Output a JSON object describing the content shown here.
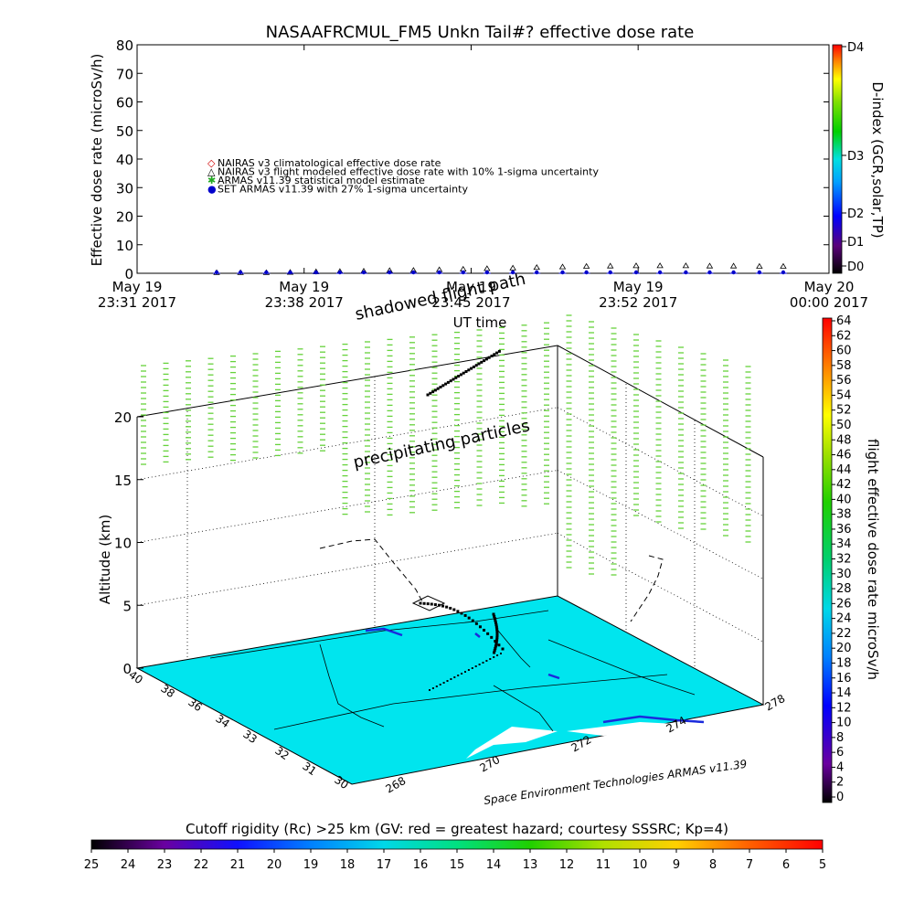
{
  "top_chart": {
    "title": "NASAAFRCMUL_FM5 Unkn Tail#? effective dose rate",
    "ylabel": "Effective dose rate (microSv/h)",
    "xlabel": "UT time",
    "y_ticks": [
      "0",
      "10",
      "20",
      "30",
      "40",
      "50",
      "60",
      "70",
      "80"
    ],
    "x_ticks": [
      {
        "line1": "May 19",
        "line2": "23:31 2017"
      },
      {
        "line1": "May 19",
        "line2": "23:38 2017"
      },
      {
        "line1": "May 19",
        "line2": "23:45 2017"
      },
      {
        "line1": "May 19",
        "line2": "23:52 2017"
      },
      {
        "line1": "May 20",
        "line2": "00:00 2017"
      }
    ],
    "legend": [
      {
        "marker": "◇",
        "color": "#d00000",
        "label": "NAIRAS v3 climatological effective dose rate"
      },
      {
        "marker": "△",
        "color": "#000000",
        "label": "NAIRAS v3 flight modeled effective dose rate with 10% 1-sigma uncertainty"
      },
      {
        "marker": "✱",
        "color": "#22aa22",
        "label": "ARMAS v11.39 statistical model estimate"
      },
      {
        "marker": "●",
        "color": "#0000cc",
        "label": "SET ARMAS v11.39 with 27% 1-sigma uncertainty"
      }
    ],
    "d_index": {
      "title": "D-index (GCR,solar,TP)",
      "labels": [
        "D4",
        "D3",
        "D2",
        "D1",
        "D0"
      ]
    }
  },
  "bottom_chart": {
    "z_label": "Altitude (km)",
    "z_ticks": [
      "0",
      "5",
      "10",
      "15",
      "20"
    ],
    "lat_ticks": [
      "40",
      "38",
      "36",
      "34",
      "33",
      "32",
      "31",
      "30"
    ],
    "lon_ticks": [
      "268",
      "270",
      "272",
      "274",
      "278"
    ],
    "annotations": {
      "shadowed": "shadowed flight path",
      "precip": "precipitating particles",
      "credit": "Space Environment Technologies ARMAS v11.39"
    },
    "right_colorbar": {
      "title": "flight effective dose rate microSv/h",
      "ticks": [
        "64",
        "62",
        "60",
        "58",
        "56",
        "54",
        "52",
        "50",
        "48",
        "46",
        "44",
        "42",
        "40",
        "38",
        "36",
        "34",
        "32",
        "30",
        "28",
        "26",
        "24",
        "22",
        "20",
        "18",
        "16",
        "14",
        "12",
        "10",
        "8",
        "6",
        "4",
        "2",
        "0"
      ]
    },
    "bottom_colorbar": {
      "title": "Cutoff rigidity (Rc) >25 km (GV: red = greatest hazard; courtesy SSSRC; Kp=4)",
      "ticks": [
        "25",
        "24",
        "23",
        "22",
        "21",
        "20",
        "19",
        "18",
        "17",
        "16",
        "15",
        "14",
        "13",
        "12",
        "11",
        "10",
        "9",
        "8",
        "7",
        "6",
        "5"
      ]
    }
  },
  "chart_data": [
    {
      "type": "scatter",
      "title": "NASAAFRCMUL_FM5 Unkn Tail#? effective dose rate",
      "xlabel": "UT time",
      "ylabel": "Effective dose rate (microSv/h)",
      "ylim": [
        0,
        80
      ],
      "x_ticks": [
        "May 19 23:31 2017",
        "May 19 23:38 2017",
        "May 19 23:45 2017",
        "May 19 23:52 2017",
        "May 20 00:00 2017"
      ],
      "series": [
        {
          "name": "NAIRAS v3 flight modeled effective dose rate with 10% 1-sigma uncertainty",
          "x": [
            "23:34:20",
            "23:35:20",
            "23:36:25",
            "23:37:25",
            "23:38:30",
            "23:39:30",
            "23:40:30",
            "23:41:35",
            "23:42:35",
            "23:43:40",
            "23:44:40",
            "23:45:40",
            "23:46:45",
            "23:47:45",
            "23:48:50",
            "23:49:50",
            "23:50:50",
            "23:51:55",
            "23:52:55",
            "23:54:00",
            "23:55:00",
            "23:56:00",
            "23:57:05",
            "23:58:05"
          ],
          "y": [
            0.2,
            0.2,
            0.2,
            0.3,
            0.5,
            0.6,
            0.7,
            0.9,
            1.0,
            1.2,
            1.4,
            1.6,
            1.8,
            2.0,
            2.2,
            2.4,
            2.5,
            2.6,
            2.6,
            2.6,
            2.5,
            2.5,
            2.4,
            2.4
          ]
        },
        {
          "name": "SET ARMAS v11.39 with 27% 1-sigma uncertainty",
          "x": [
            "23:34:20",
            "23:35:20",
            "23:36:25",
            "23:37:25",
            "23:38:30",
            "23:39:30",
            "23:40:30",
            "23:41:35",
            "23:42:35",
            "23:43:40",
            "23:44:40",
            "23:45:40",
            "23:46:45",
            "23:47:45",
            "23:48:50",
            "23:49:50",
            "23:50:50",
            "23:51:55",
            "23:52:55",
            "23:54:00",
            "23:55:00",
            "23:56:00",
            "23:57:05",
            "23:58:05"
          ],
          "y": [
            0.0,
            0.0,
            0.0,
            0.0,
            0.0,
            0.0,
            0.0,
            0.0,
            0.0,
            0.0,
            0.0,
            0.0,
            0.0,
            0.0,
            0.0,
            0.0,
            0.0,
            0.0,
            0.0,
            0.0,
            0.0,
            0.0,
            0.0,
            0.0
          ]
        }
      ]
    }
  ],
  "colors": {
    "ground": "#00e5ee",
    "precip": "#66d23c",
    "flight": "#000000"
  }
}
